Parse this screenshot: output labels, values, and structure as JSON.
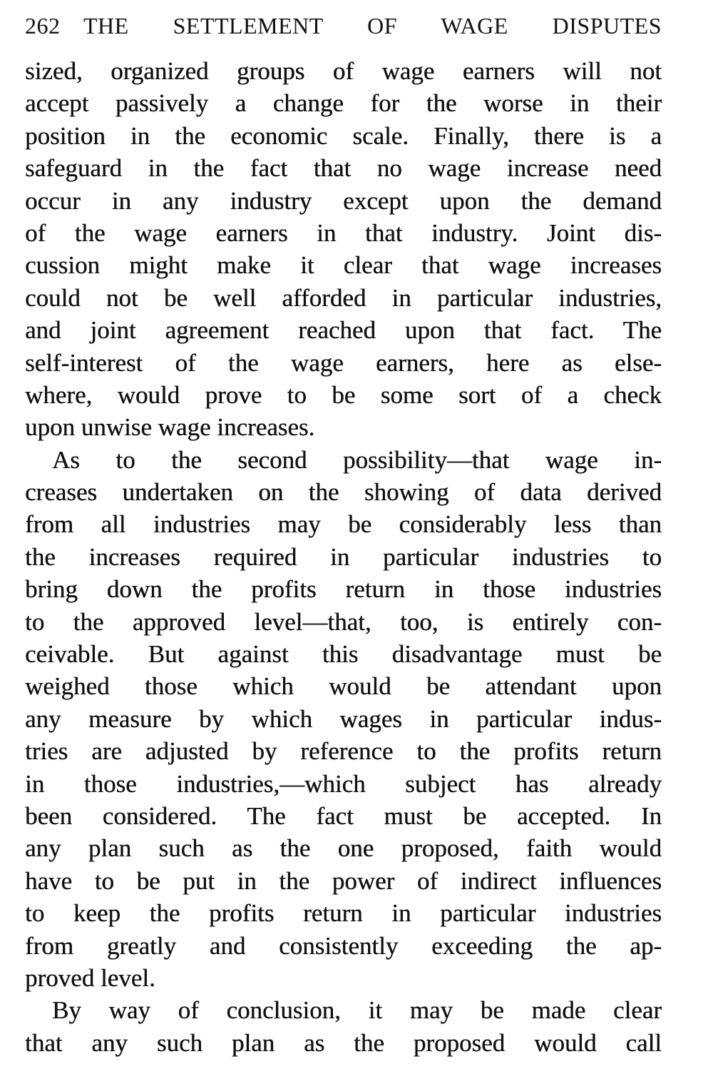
{
  "header": {
    "page_number": "262",
    "title": "THE SETTLEMENT OF WAGE DISPUTES"
  },
  "paragraphs": [
    {
      "indent": false,
      "lines": [
        "sized, organized groups of wage earners will not",
        "accept passively a change for the worse in their",
        "position in the economic scale.  Finally, there is a",
        "safeguard in the fact that no wage increase need",
        "occur in any industry except upon the demand",
        "of the wage earners in that industry.  Joint dis-",
        "cussion might make it clear that wage increases",
        "could not be well afforded in particular industries,",
        "and joint agreement reached upon that fact.  The",
        "self-interest of the wage earners, here as else-",
        "where, would prove to be some sort of a check",
        "upon unwise wage increases."
      ]
    },
    {
      "indent": true,
      "lines": [
        "As to the second possibility—that wage in-",
        "creases undertaken on the showing of data derived",
        "from all industries may be considerably less than",
        "the increases required in particular industries to",
        "bring down the profits return in those industries",
        "to the approved level—that, too, is entirely con-",
        "ceivable.  But against this disadvantage must be",
        "weighed those which would be attendant upon",
        "any measure by which wages in particular indus-",
        "tries are adjusted by reference to the profits return",
        "in those industries,—which subject has already",
        "been considered.  The fact must be accepted.  In",
        "any plan such as the one proposed, faith would",
        "have to be put in the power of indirect influences",
        "to keep the profits return in particular industries",
        "from greatly and consistently exceeding the ap-",
        "proved level."
      ]
    },
    {
      "indent": true,
      "continues": true,
      "lines": [
        "By way of conclusion, it may be made clear",
        "that any such plan as the proposed would call"
      ]
    }
  ]
}
